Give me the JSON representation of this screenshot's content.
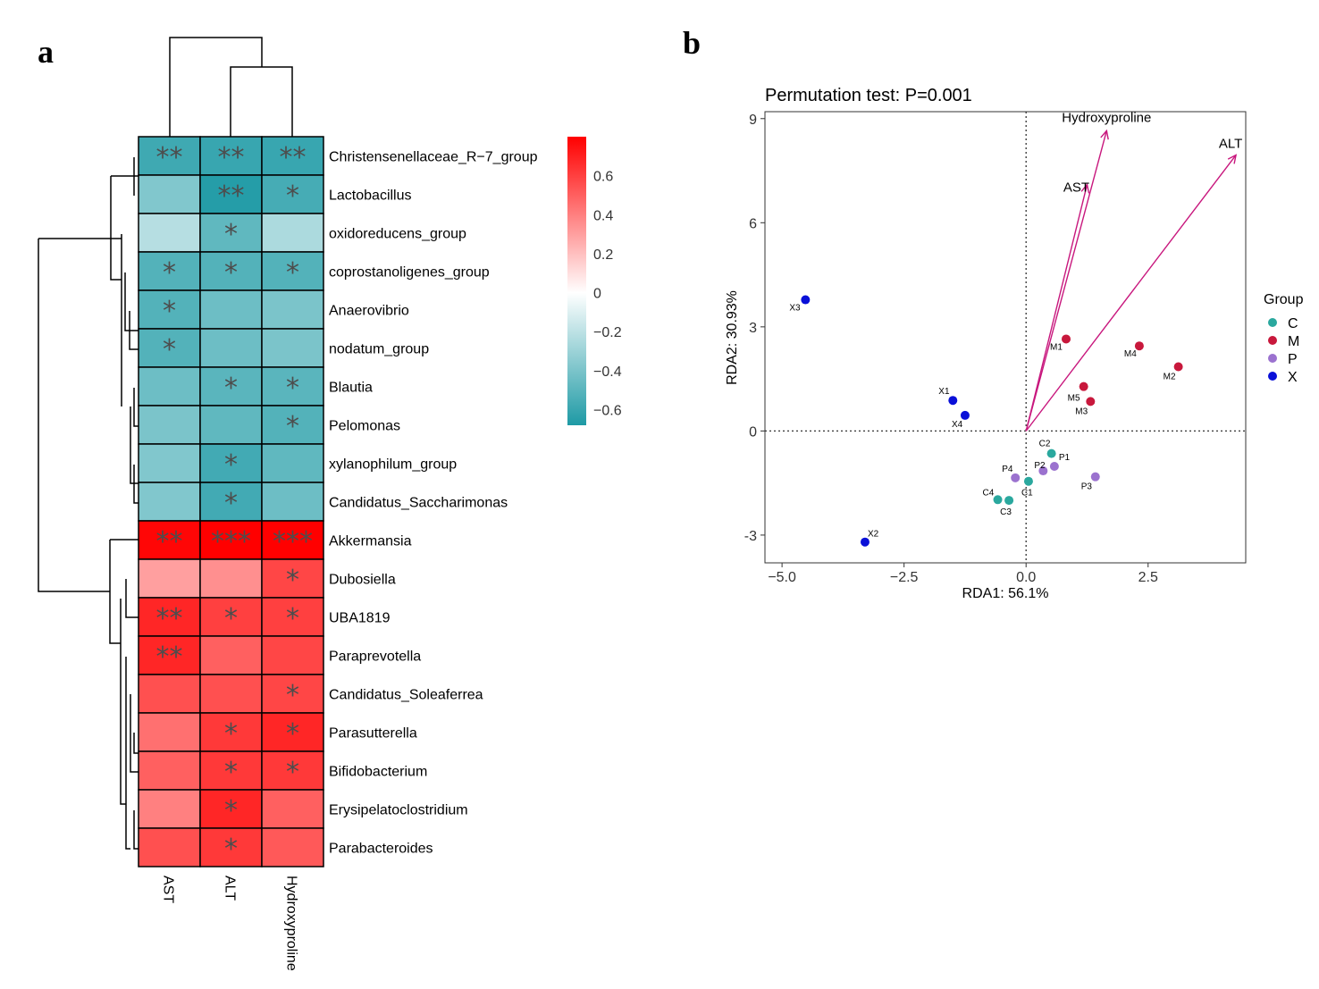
{
  "panel_labels": {
    "a": "a",
    "b": "b"
  },
  "chart_data": [
    {
      "type": "heatmap",
      "title": "",
      "rows": [
        "Christensenellaceae_R−7_group",
        "Lactobacillus",
        "oxidoreducens_group",
        "coprostanoligenes_group",
        "Anaerovibrio",
        "nodatum_group",
        "Blautia",
        "Pelomonas",
        "xylanophilum_group",
        "Candidatus_Saccharimonas",
        "Akkermansia",
        "Dubosiella",
        "UBA1819",
        "Paraprevotella",
        "Candidatus_Soleaferrea",
        "Parasutterella",
        "Bifidobacterium",
        "Erysipelatoclostridium",
        "Parabacteroides"
      ],
      "columns": [
        "AST",
        "ALT",
        "Hydroxyproline"
      ],
      "values": [
        [
          -0.58,
          -0.6,
          -0.6
        ],
        [
          -0.38,
          -0.66,
          -0.56
        ],
        [
          -0.22,
          -0.48,
          -0.25
        ],
        [
          -0.52,
          -0.52,
          -0.52
        ],
        [
          -0.52,
          -0.44,
          -0.4
        ],
        [
          -0.52,
          -0.44,
          -0.4
        ],
        [
          -0.44,
          -0.5,
          -0.5
        ],
        [
          -0.4,
          -0.48,
          -0.52
        ],
        [
          -0.38,
          -0.57,
          -0.48
        ],
        [
          -0.38,
          -0.57,
          -0.44
        ],
        [
          0.78,
          0.8,
          0.8
        ],
        [
          0.3,
          0.35,
          0.58
        ],
        [
          0.68,
          0.6,
          0.6
        ],
        [
          0.68,
          0.5,
          0.58
        ],
        [
          0.55,
          0.55,
          0.58
        ],
        [
          0.45,
          0.62,
          0.68
        ],
        [
          0.5,
          0.62,
          0.62
        ],
        [
          0.4,
          0.68,
          0.5
        ],
        [
          0.55,
          0.62,
          0.52
        ]
      ],
      "significance": [
        [
          "**",
          "**",
          "**"
        ],
        [
          "",
          "**",
          "*"
        ],
        [
          "",
          "*",
          ""
        ],
        [
          "*",
          "*",
          "*"
        ],
        [
          "*",
          "",
          ""
        ],
        [
          "*",
          "",
          ""
        ],
        [
          "",
          "*",
          "*"
        ],
        [
          "",
          "",
          "*"
        ],
        [
          "",
          "*",
          ""
        ],
        [
          "",
          "*",
          ""
        ],
        [
          "**",
          "***",
          "***"
        ],
        [
          "",
          "",
          "*"
        ],
        [
          "**",
          "*",
          "*"
        ],
        [
          "**",
          "",
          ""
        ],
        [
          "",
          "",
          "*"
        ],
        [
          "",
          "*",
          "*"
        ],
        [
          "",
          "*",
          "*"
        ],
        [
          "",
          "*",
          ""
        ],
        [
          "",
          "*",
          ""
        ]
      ],
      "colorbar": {
        "ticks": [
          0.6,
          0.4,
          0.2,
          0,
          -0.2,
          -0.4,
          -0.6
        ],
        "tick_labels": [
          "0.6",
          "0.4",
          "0.2",
          "0",
          "−0.2",
          "−0.4",
          "−0.6"
        ],
        "range": [
          -0.68,
          0.8
        ],
        "low_color": "#1e9aa5",
        "mid_color": "#ffffff",
        "high_color": "#ff0000"
      },
      "dendrogram": {
        "row_clusters": [
          "negative",
          "positive"
        ],
        "column_order": [
          "AST",
          "ALT",
          "Hydroxyproline"
        ]
      }
    },
    {
      "type": "scatter",
      "title": "Permutation test: P=0.001",
      "xlabel": "RDA1: 56.1%",
      "ylabel": "RDA2: 30.93%",
      "xlim": [
        -5.35,
        4.5
      ],
      "ylim": [
        -3.8,
        9.2
      ],
      "xticks": [
        -5.0,
        -2.5,
        0.0,
        2.5
      ],
      "xtick_labels": [
        "−5.0",
        "−2.5",
        "0.0",
        "2.5"
      ],
      "yticks": [
        -3,
        0,
        3,
        6,
        9
      ],
      "ytick_labels": [
        "-3",
        "0",
        "3",
        "6",
        "9"
      ],
      "reference_lines": {
        "x": 0,
        "y": 0
      },
      "legend": {
        "title": "Group",
        "placement": "right",
        "items": [
          {
            "label": "C",
            "color": "#2aa89e"
          },
          {
            "label": "M",
            "color": "#c8183c"
          },
          {
            "label": "P",
            "color": "#9b72cf"
          },
          {
            "label": "X",
            "color": "#0a10d8"
          }
        ]
      },
      "points": [
        {
          "label": "C1",
          "group": "C",
          "x": 0.05,
          "y": -1.45
        },
        {
          "label": "C2",
          "group": "C",
          "x": 0.52,
          "y": -0.65
        },
        {
          "label": "C3",
          "group": "C",
          "x": -0.35,
          "y": -2.0
        },
        {
          "label": "C4",
          "group": "C",
          "x": -0.58,
          "y": -1.98
        },
        {
          "label": "M1",
          "group": "M",
          "x": 0.82,
          "y": 2.65
        },
        {
          "label": "M2",
          "group": "M",
          "x": 3.12,
          "y": 1.85
        },
        {
          "label": "M3",
          "group": "M",
          "x": 1.32,
          "y": 0.85
        },
        {
          "label": "M4",
          "group": "M",
          "x": 2.32,
          "y": 2.45
        },
        {
          "label": "M5",
          "group": "M",
          "x": 1.18,
          "y": 1.28
        },
        {
          "label": "P1",
          "group": "P",
          "x": 0.58,
          "y": -1.02
        },
        {
          "label": "P2",
          "group": "P",
          "x": 0.35,
          "y": -1.15
        },
        {
          "label": "P3",
          "group": "P",
          "x": 1.42,
          "y": -1.32
        },
        {
          "label": "P4",
          "group": "P",
          "x": -0.22,
          "y": -1.35
        },
        {
          "label": "X1",
          "group": "X",
          "x": -1.5,
          "y": 0.88
        },
        {
          "label": "X2",
          "group": "X",
          "x": -3.3,
          "y": -3.2
        },
        {
          "label": "X3",
          "group": "X",
          "x": -4.52,
          "y": 3.78
        },
        {
          "label": "X4",
          "group": "X",
          "x": -1.25,
          "y": 0.45
        }
      ],
      "arrows": [
        {
          "label": "Hydroxyproline",
          "x": 1.65,
          "y": 8.65,
          "color": "#c8177d"
        },
        {
          "label": "ALT",
          "x": 4.3,
          "y": 7.95,
          "color": "#c8177d"
        },
        {
          "label": "AST",
          "x": 1.25,
          "y": 7.1,
          "color": "#c8177d"
        }
      ]
    }
  ]
}
